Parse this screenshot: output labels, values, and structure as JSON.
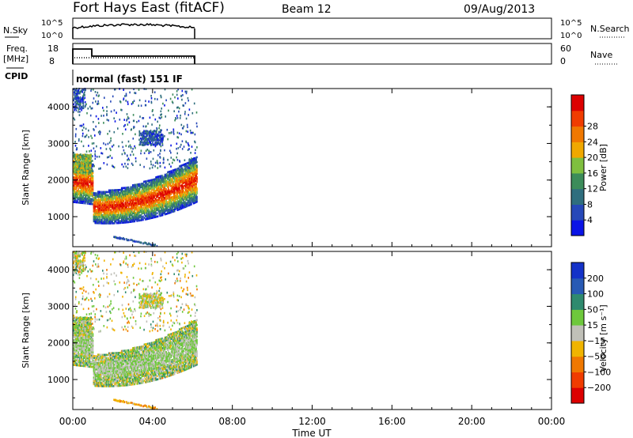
{
  "header": {
    "station": "Fort Hays East (fitACF)",
    "beam": "Beam 12",
    "date": "09/Aug/2013"
  },
  "noise_panel": {
    "left_label": "N.Sky",
    "left_ticks": [
      "10^5",
      "10^0"
    ],
    "right_ticks": [
      "10^5",
      "10^0"
    ],
    "right_label": "N.Search"
  },
  "freq_panel": {
    "left_label_1": "Freq.",
    "left_label_2": "[MHz]",
    "left_ticks": [
      "18",
      "8"
    ],
    "right_ticks": [
      "60",
      "0"
    ],
    "right_label": "Nave"
  },
  "cpid": {
    "label": "CPID",
    "value": "normal (fast) 151 IF"
  },
  "chart_data": [
    {
      "type": "heatmap",
      "panel": "power",
      "ylabel": "Slant Range [km]",
      "xlabel": "Time UT",
      "x_ticks": [
        "00:00",
        "04:00",
        "08:00",
        "12:00",
        "16:00",
        "20:00",
        "00:00"
      ],
      "y_ticks": [
        "1000",
        "2000",
        "3000",
        "4000"
      ],
      "ylim": [
        180,
        4500
      ],
      "xlim_hours": [
        0,
        24
      ],
      "data_coverage_hours": [
        0,
        6.2
      ],
      "colorbar": {
        "label": "Power [dB]",
        "ticks": [
          "4",
          "8",
          "12",
          "16",
          "20",
          "24",
          "28"
        ],
        "colors": [
          "#0a14e6",
          "#2648b8",
          "#2f6e7e",
          "#3c8c5a",
          "#7fbf3f",
          "#f0a800",
          "#f07800",
          "#f03c00",
          "#dc0000"
        ]
      }
    },
    {
      "type": "heatmap",
      "panel": "velocity",
      "ylabel": "Slant Range [km]",
      "y_ticks": [
        "1000",
        "2000",
        "3000",
        "4000"
      ],
      "ylim": [
        180,
        4500
      ],
      "colorbar": {
        "label": "Velocity [m s⁻¹]",
        "ticks": [
          "200",
          "100",
          "50",
          "15",
          "−15",
          "−50",
          "−100",
          "−200"
        ],
        "colors": [
          "#1432c8",
          "#285ab4",
          "#2f8a6e",
          "#6ec83c",
          "#c0c0b8",
          "#f0b400",
          "#f07800",
          "#f03c00",
          "#dc0000"
        ]
      }
    }
  ]
}
